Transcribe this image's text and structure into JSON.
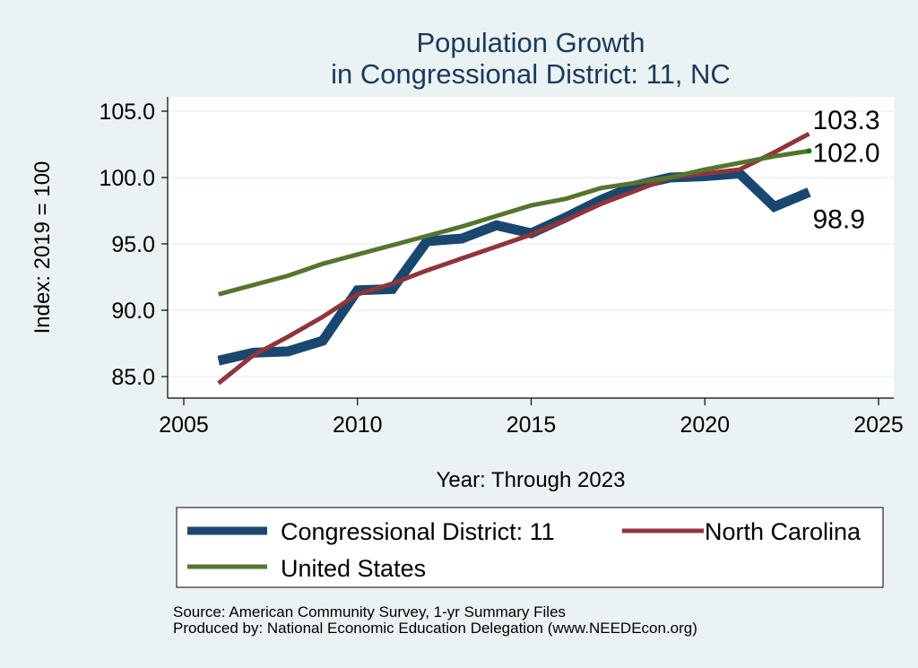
{
  "chart_data": {
    "type": "line",
    "title": "Population Growth",
    "subtitle": "in Congressional District: 11, NC",
    "xlabel": "Year: Through 2023",
    "ylabel": "Index: 2019 = 100",
    "xlim": [
      2005,
      2025
    ],
    "ylim": [
      85,
      105
    ],
    "x_ticks": [
      "2005",
      "2010",
      "2015",
      "2020",
      "2025"
    ],
    "y_ticks": [
      "85.0",
      "90.0",
      "95.0",
      "100.0",
      "105.0"
    ],
    "grid": true,
    "x": [
      2006,
      2007,
      2008,
      2009,
      2010,
      2011,
      2012,
      2013,
      2014,
      2015,
      2016,
      2017,
      2018,
      2019,
      2020,
      2021,
      2022,
      2023
    ],
    "series": [
      {
        "name": "Congressional District: 11",
        "color": "#1a476f",
        "end_label": "98.9",
        "values": [
          86.2,
          86.8,
          86.9,
          87.7,
          91.5,
          91.6,
          95.2,
          95.4,
          96.4,
          95.8,
          97.0,
          98.3,
          99.4,
          100.0,
          100.1,
          100.3,
          97.8,
          98.9
        ]
      },
      {
        "name": "North Carolina",
        "color": "#90353b",
        "end_label": "103.3",
        "values": [
          84.5,
          86.6,
          88.0,
          89.5,
          91.2,
          92.0,
          93.0,
          93.9,
          94.8,
          95.7,
          96.8,
          98.0,
          99.0,
          100.0,
          100.3,
          100.6,
          101.9,
          103.3
        ]
      },
      {
        "name": "United States",
        "color": "#55752f",
        "end_label": "102.0",
        "values": [
          91.2,
          91.9,
          92.6,
          93.5,
          94.2,
          94.9,
          95.6,
          96.3,
          97.1,
          97.9,
          98.4,
          99.2,
          99.6,
          100.0,
          100.6,
          101.1,
          101.6,
          102.0
        ]
      }
    ],
    "legend": {
      "placement": "bottom",
      "entries": [
        "Congressional District: 11",
        "North Carolina",
        "United States"
      ]
    },
    "notes": [
      "Source: American Community Survey, 1-yr Summary Files",
      "Produced by: National Economic Education Delegation (www.NEEDEcon.org)"
    ]
  }
}
